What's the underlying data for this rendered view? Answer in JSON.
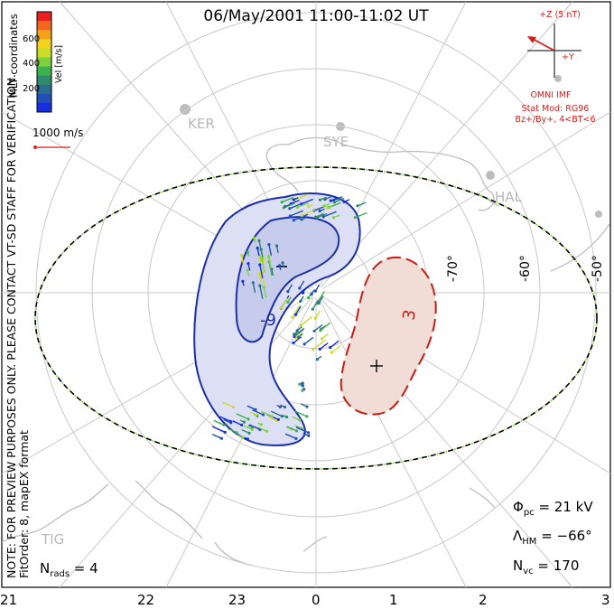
{
  "title": "06/May/2001 11:00-11:02 UT",
  "watermark": "NOTE: FOR PREVIEW PURPOSES ONLY. PLEASE CONTACT VT-SD STAFF FOR VERIFICATION.",
  "fit_info": "FitOrder: 8, mapEX format",
  "coords": "MLT coordinates",
  "colorbar": {
    "label": "Vel [m/s]",
    "ticks": [
      "600",
      "400",
      "200"
    ],
    "colors": [
      "#e62020",
      "#f2661e",
      "#f5a21a",
      "#f1d21c",
      "#c8dc2a",
      "#7dd23e",
      "#3fb04e",
      "#2f8c6a",
      "#2a6e8c",
      "#2050b8",
      "#1a2ee0"
    ]
  },
  "scale_vector": "1000 m/s",
  "imf": {
    "top": "+Z (5 nT)",
    "right": "+Y",
    "source": "OMNI IMF"
  },
  "stat_model": [
    "Stat Mod: RG96",
    "Bz+/By+, 4<BT<6"
  ],
  "stations": {
    "ker": "KER",
    "sye": "SYE",
    "hal": "HAL",
    "tig": "TIG"
  },
  "latitudes": [
    "-50°",
    "-60°",
    "-70°"
  ],
  "contour_labels": {
    "neg": "-9",
    "pos": "3"
  },
  "signs": {
    "neg": "−",
    "pos": "+"
  },
  "stats": {
    "phi_sym": "Φ",
    "phi_sub": "pc",
    "phi_val": " = 21 kV",
    "lam_sym": "Λ",
    "lam_sub": "HM",
    "lam_val": " = −66°",
    "n_sym": "N",
    "n_sub": "vc",
    "n_val": " = 170",
    "rads_sym": "N",
    "rads_sub": "rads",
    "rads_val": " = 4"
  },
  "mlt_axis": [
    "21",
    "22",
    "23",
    "0",
    "1",
    "2",
    "3"
  ]
}
